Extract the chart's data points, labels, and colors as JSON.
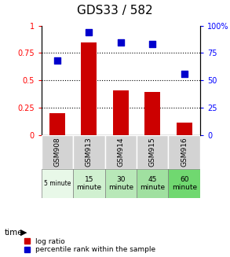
{
  "title": "GDS33 / 582",
  "categories": [
    "GSM908",
    "GSM913",
    "GSM914",
    "GSM915",
    "GSM916"
  ],
  "time_labels": [
    "5 minute",
    "15\nminute",
    "30\nminute",
    "45\nminute",
    "60\nminute"
  ],
  "log_ratio": [
    0.2,
    0.85,
    0.41,
    0.39,
    0.11
  ],
  "percentile_rank": [
    68,
    94,
    85,
    83,
    56
  ],
  "bar_color": "#cc0000",
  "dot_color": "#0000cc",
  "ylim_left": [
    0,
    1.0
  ],
  "ylim_right": [
    0,
    100
  ],
  "yticks_left": [
    0,
    0.25,
    0.5,
    0.75,
    1.0
  ],
  "ytick_labels_left": [
    "0",
    "0.25",
    "0.5",
    "0.75",
    "1"
  ],
  "yticks_right": [
    0,
    25,
    50,
    75,
    100
  ],
  "ytick_labels_right": [
    "0",
    "25",
    "50",
    "75",
    "100%"
  ],
  "gsm_bg_color": "#d3d3d3",
  "green_colors": [
    "#e8f8e8",
    "#d0f0d0",
    "#b8e8b8",
    "#a0e0a0",
    "#70d870"
  ],
  "legend_labels": [
    "log ratio",
    "percentile rank within the sample"
  ]
}
